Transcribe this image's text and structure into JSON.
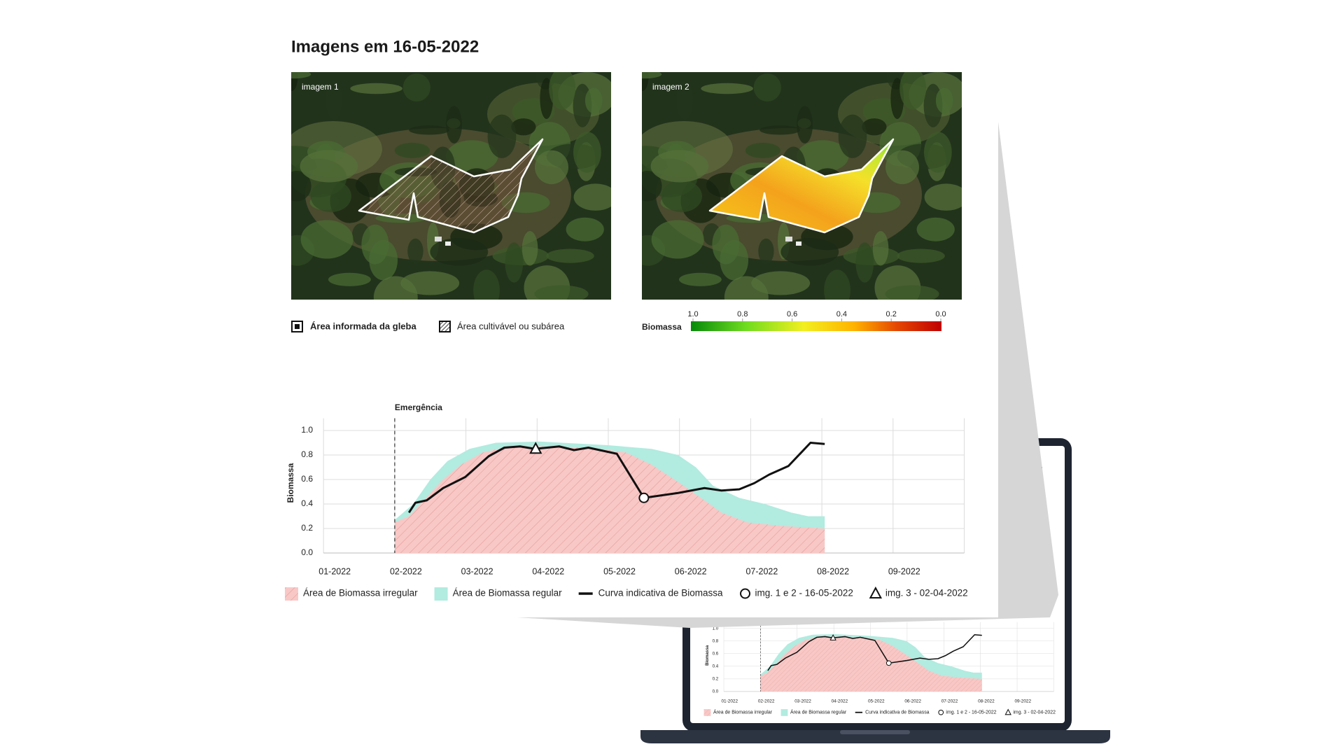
{
  "header": {
    "title": "Imagens em  16-05-2022"
  },
  "images": [
    {
      "label": "imagem 1"
    },
    {
      "label": "imagem 2"
    }
  ],
  "map_legend": [
    "Área informada da gleba",
    "Área cultivável ou subárea"
  ],
  "colorbar": {
    "label": "Biomassa",
    "ticks": [
      {
        "value": 1,
        "label": "1.0"
      },
      0.8,
      0.6,
      0.4,
      0.2,
      {
        "value": 0,
        "label": "0.0"
      }
    ]
  },
  "chart_data": {
    "type": "area",
    "y_label": "Biomassa",
    "annotation": {
      "label": "Emergência",
      "x": 2
    },
    "xlim": [
      1,
      10
    ],
    "ylim": [
      0,
      1.1
    ],
    "xticks": [
      {
        "value": 1,
        "label": "01-2022"
      },
      {
        "value": 2,
        "label": "02-2022"
      },
      {
        "value": 3,
        "label": "03-2022"
      },
      {
        "value": 4,
        "label": "04-2022"
      },
      {
        "value": 5,
        "label": "05-2022"
      },
      {
        "value": 6,
        "label": "06-2022"
      },
      {
        "value": 7,
        "label": "07-2022"
      },
      {
        "value": 8,
        "label": "08-2022"
      },
      {
        "value": 9,
        "label": "09-2022"
      }
    ],
    "yticks": [
      {
        "value": 0,
        "label": "0.0"
      },
      0.2,
      0.4,
      0.6,
      0.8,
      {
        "value": 1,
        "label": "1.0"
      }
    ],
    "grid": true,
    "series": [
      {
        "name": "Área de Biomassa regular",
        "mark": "area",
        "color": "#b2ebe0",
        "x": [
          2.0,
          2.26,
          2.5,
          2.74,
          3.05,
          3.42,
          4.03,
          5.0,
          5.61,
          5.98,
          6.23,
          6.47,
          6.84,
          7.2,
          7.57,
          7.81,
          8.04
        ],
        "values": [
          0.27,
          0.4,
          0.6,
          0.75,
          0.85,
          0.9,
          0.91,
          0.88,
          0.85,
          0.8,
          0.7,
          0.55,
          0.45,
          0.4,
          0.33,
          0.3,
          0.3
        ]
      },
      {
        "name": "Área de Biomassa irregular",
        "mark": "area",
        "color": "#f8c8c6",
        "hatch": true,
        "x": [
          2.0,
          2.2,
          2.44,
          2.68,
          2.93,
          3.23,
          3.54,
          4.03,
          4.76,
          5.25,
          5.61,
          5.98,
          6.35,
          6.59,
          6.95,
          7.45,
          8.04
        ],
        "values": [
          0.25,
          0.3,
          0.45,
          0.6,
          0.72,
          0.82,
          0.86,
          0.87,
          0.86,
          0.82,
          0.72,
          0.58,
          0.43,
          0.33,
          0.25,
          0.22,
          0.2
        ]
      },
      {
        "name": "Curva indicativa de Biomassa",
        "mark": "line",
        "color": "#111111",
        "x": [
          2.2,
          2.29,
          2.45,
          2.68,
          2.99,
          3.32,
          3.54,
          3.76,
          3.97,
          4.31,
          4.52,
          4.72,
          5.12,
          5.5,
          5.98,
          6.35,
          6.59,
          6.84,
          7.05,
          7.26,
          7.53,
          7.84,
          8.04
        ],
        "values": [
          0.33,
          0.41,
          0.43,
          0.53,
          0.62,
          0.79,
          0.86,
          0.87,
          0.85,
          0.87,
          0.84,
          0.86,
          0.81,
          0.45,
          0.49,
          0.53,
          0.51,
          0.52,
          0.57,
          0.64,
          0.71,
          0.9,
          0.89
        ]
      },
      {
        "name": "img. 1 e 2 - 16-05-2022",
        "mark": "circle",
        "color": "#111111",
        "x": [
          5.5
        ],
        "values": [
          0.45
        ]
      },
      {
        "name": "img. 3 - 02-04-2022",
        "mark": "triangle",
        "color": "#111111",
        "x": [
          3.98
        ],
        "values": [
          0.85
        ]
      }
    ]
  }
}
